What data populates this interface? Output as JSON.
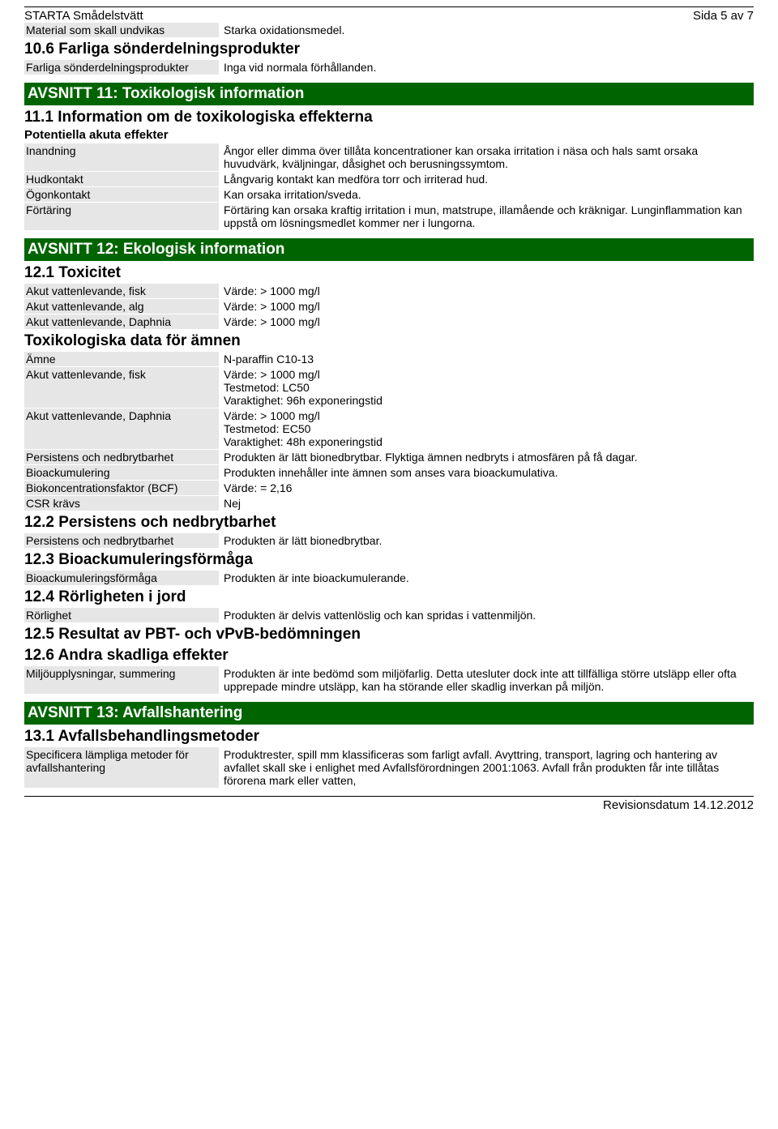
{
  "colors": {
    "section_bar_bg": "#006400",
    "label_bg": "#e6e6e6",
    "text": "#000000",
    "page_bg": "#ffffff"
  },
  "header": {
    "title": "STARTA Smådelstvätt",
    "page": "Sida 5 av 7"
  },
  "s10": {
    "material_label": "Material som skall undvikas",
    "material_value": "Starka oxidationsmedel.",
    "h106": "10.6 Farliga sönderdelningsprodukter",
    "decomp_label": "Farliga sönderdelningsprodukter",
    "decomp_value": "Inga vid normala förhållanden."
  },
  "s11": {
    "title": "AVSNITT 11: Toxikologisk information",
    "h111": "11.1 Information om de toxikologiska effekterna",
    "pae": "Potentiella akuta effekter",
    "inh_label": "Inandning",
    "inh_value": "Ångor eller dimma över tillåta koncentrationer kan orsaka irritation i näsa och hals samt orsaka huvudvärk, kväljningar, dåsighet och berusningssymtom.",
    "skin_label": "Hudkontakt",
    "skin_value": "Långvarig kontakt kan medföra torr och irriterad hud.",
    "eye_label": "Ögonkontakt",
    "eye_value": "Kan orsaka irritation/sveda.",
    "ing_label": "Förtäring",
    "ing_value": "Förtäring kan orsaka kraftig irritation i mun, matstrupe, illamående och kräknigar. Lunginflammation kan uppstå om lösningsmedlet kommer ner i lungorna."
  },
  "s12": {
    "title": "AVSNITT 12: Ekologisk information",
    "h121": "12.1 Toxicitet",
    "fish_label": "Akut vattenlevande, fisk",
    "fish_value": "Värde: > 1000 mg/l",
    "alg_label": "Akut vattenlevande, alg",
    "alg_value": "Värde: > 1000 mg/l",
    "daph_label": "Akut vattenlevande, Daphnia",
    "daph_value": "Värde: > 1000 mg/l",
    "toxdata": "Toxikologiska data för ämnen",
    "amne_label": "Ämne",
    "amne_value": "N-paraffin C10-13",
    "fish2_label": "Akut vattenlevande, fisk",
    "fish2_v1": "Värde: > 1000 mg/l",
    "fish2_v2": "Testmetod: LC50",
    "fish2_v3": "Varaktighet: 96h exponeringstid",
    "daph2_label": "Akut vattenlevande, Daphnia",
    "daph2_v1": "Värde: > 1000 mg/l",
    "daph2_v2": "Testmetod: EC50",
    "daph2_v3": "Varaktighet: 48h exponeringstid",
    "pers_label": "Persistens och nedbrytbarhet",
    "pers_value": "Produkten är lätt bionedbrytbar. Flyktiga ämnen nedbryts i atmosfären på få dagar.",
    "bioack_label": "Bioackumulering",
    "bioack_value": "Produkten innehåller inte ämnen som anses vara bioackumulativa.",
    "bcf_label": "Biokoncentrationsfaktor (BCF)",
    "bcf_value": "Värde: = 2,16",
    "csr_label": "CSR krävs",
    "csr_value": "Nej",
    "h122": "12.2 Persistens och nedbrytbarhet",
    "pers2_label": "Persistens och nedbrytbarhet",
    "pers2_value": "Produkten är lätt bionedbrytbar.",
    "h123": "12.3 Bioackumuleringsförmåga",
    "bioack2_label": "Bioackumuleringsförmåga",
    "bioack2_value": "Produkten är inte bioackumulerande.",
    "h124": "12.4 Rörligheten i jord",
    "mob_label": "Rörlighet",
    "mob_value": "Produkten är delvis vattenlöslig och kan spridas i vattenmiljön.",
    "h125": "12.5 Resultat av PBT- och vPvB-bedömningen",
    "h126": "12.6 Andra skadliga effekter",
    "env_label": "Miljöupplysningar, summering",
    "env_value": "Produkten är inte bedömd som miljöfarlig. Detta utesluter dock inte att tillfälliga större utsläpp eller ofta upprepade mindre utsläpp, kan ha störande eller skadlig inverkan på miljön."
  },
  "s13": {
    "title": "AVSNITT 13: Avfallshantering",
    "h131": "13.1 Avfallsbehandlingsmetoder",
    "spec_label": "Specificera lämpliga metoder för avfallshantering",
    "spec_value": "Produktrester, spill mm klassificeras som farligt avfall. Avyttring, transport, lagring och hantering av avfallet skall ske i enlighet med Avfallsförordningen 2001:1063. Avfall från produkten får inte tillåtas förorena mark eller vatten,"
  },
  "footer": {
    "revision": "Revisionsdatum 14.12.2012"
  }
}
